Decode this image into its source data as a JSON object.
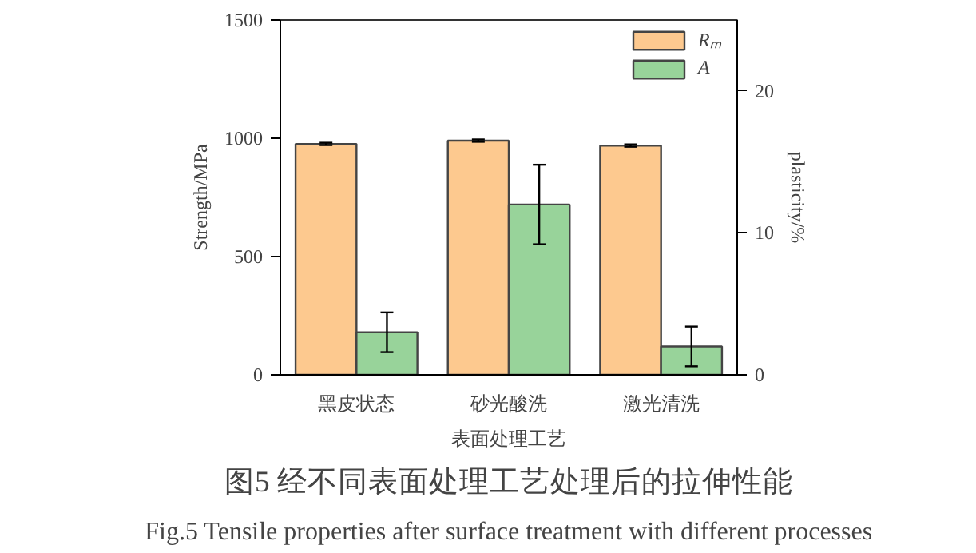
{
  "chart_data": {
    "type": "bar",
    "categories": [
      "黑皮状态",
      "砂光酸洗",
      "激光清洗"
    ],
    "xlabel": "表面处理工艺",
    "ylabel": "Strength/MPa",
    "y2label": "plasticity/%",
    "series": [
      {
        "name": "Rₘ",
        "color": "#fdc98f",
        "values": [
          976,
          990,
          969
        ],
        "errors": [
          5,
          5,
          5
        ]
      },
      {
        "name": "A",
        "color": "#98d39a",
        "values": [
          3.0,
          12.0,
          2.0
        ],
        "errors": [
          1.4,
          2.8,
          1.4
        ],
        "axis": "y2"
      }
    ],
    "ylim": [
      0,
      1500
    ],
    "yticks": [
      0,
      500,
      1000,
      1500
    ],
    "y2lim": [
      0,
      25
    ],
    "y2ticks": [
      0,
      10,
      20
    ],
    "legend": "top right",
    "grid": false,
    "annotations": [
      "图5 经不同表面处理工艺处理后的拉伸性能",
      "Fig.5 Tensile properties after surface treatment with different processes"
    ]
  }
}
